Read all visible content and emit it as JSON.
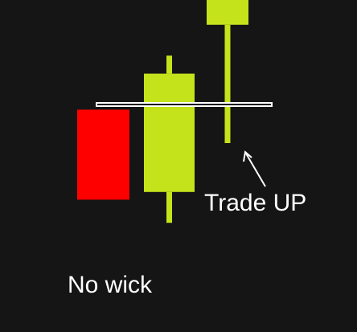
{
  "colors": {
    "background": "#151515",
    "bearish": "#ff0000",
    "bullish": "#c5e31b",
    "level_line": "#ffffff",
    "annotation": "#ffffff"
  },
  "chart_data": {
    "type": "candlestick",
    "title": "",
    "xlabel": "",
    "ylabel": "",
    "grid": false,
    "legend": "none",
    "ylim": [
      0,
      100
    ],
    "candles": [
      {
        "direction": "down",
        "open": 58,
        "close": 23,
        "high": 58,
        "low": 23
      },
      {
        "direction": "up",
        "open": 26,
        "close": 72,
        "high": 79,
        "low": 14
      },
      {
        "direction": "up",
        "open": 91,
        "close": 114,
        "high": 114,
        "low": 45
      }
    ],
    "level": {
      "y": 60,
      "style": "double-line"
    },
    "annotations": [
      {
        "id": "no-wick",
        "text": "No wick",
        "target_candle": 0
      },
      {
        "id": "trade-up",
        "text": "Trade UP",
        "target_candle": 2,
        "arrow": true
      }
    ]
  }
}
